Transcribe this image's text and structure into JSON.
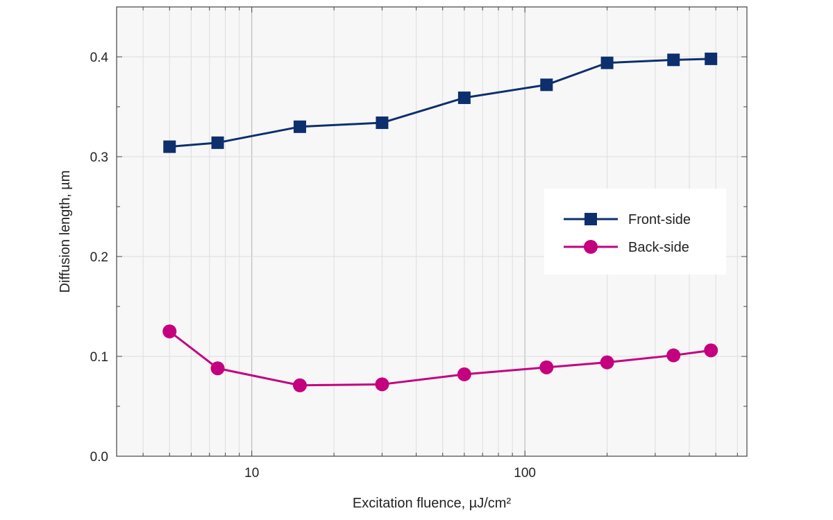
{
  "chart_data": {
    "type": "line",
    "xlabel": "Excitation fluence, µJ/cm²",
    "ylabel": "Diffusion length, µm",
    "x_scale": "log",
    "xlim": [
      3.2,
      650
    ],
    "ylim": [
      0,
      0.45
    ],
    "x_ticks": [
      {
        "value": 10,
        "label": "10"
      },
      {
        "value": 100,
        "label": "100"
      }
    ],
    "y_ticks": [
      {
        "value": 0.0,
        "label": "0.0"
      },
      {
        "value": 0.1,
        "label": "0.1"
      },
      {
        "value": 0.2,
        "label": "0.2"
      },
      {
        "value": 0.3,
        "label": "0.3"
      },
      {
        "value": 0.4,
        "label": "0.4"
      }
    ],
    "grid": true,
    "legend_position": "center-right",
    "x": [
      5,
      7.5,
      15,
      30,
      60,
      120,
      200,
      350,
      480
    ],
    "series": [
      {
        "name": "Front-side",
        "marker": "square",
        "color": "#0d2f6e",
        "values": [
          0.31,
          0.314,
          0.33,
          0.334,
          0.359,
          0.372,
          0.394,
          0.397,
          0.398
        ]
      },
      {
        "name": "Back-side",
        "marker": "circle",
        "color": "#c4007f",
        "values": [
          0.125,
          0.088,
          0.071,
          0.072,
          0.082,
          0.089,
          0.094,
          0.101,
          0.106
        ]
      }
    ]
  }
}
